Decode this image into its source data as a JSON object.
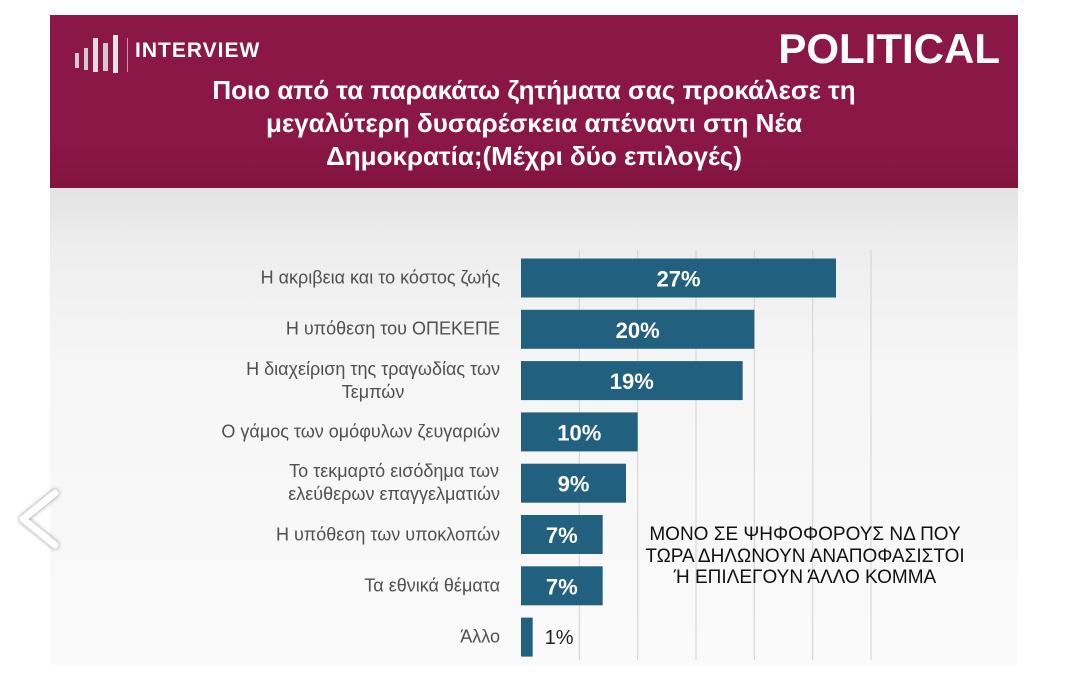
{
  "header": {
    "brand": "INTERVIEW",
    "label": "POLITICAL",
    "header_color": "#8b1747",
    "logo_icon": "logo-bars-icon"
  },
  "chart_data": {
    "type": "bar",
    "orientation": "horizontal",
    "title": "Ποιο από τα παρακάτω ζητήματα σας προκάλεσε τη\nμεγαλύτερη δυσαρέσκεια απέναντι στη Νέα\nΔημοκρατία;(Μέχρι δύο επιλογές)",
    "categories": [
      "Η ακριβεια και το κόστος ζωής",
      "Η υπόθεση του ΟΠΕΚΕΠΕ",
      "Η διαχείριση της τραγωδίας των\nΤεμπών",
      "Ο γάμος των ομόφυλων ζευγαριών",
      "Το τεκμαρτό εισόδημα των\nελεύθερων επαγγελματιών",
      "Η υπόθεση των υποκλοπών",
      "Τα εθνικά θέματα",
      "Άλλο"
    ],
    "values": [
      27,
      20,
      19,
      10,
      9,
      7,
      7,
      1
    ],
    "data_labels": [
      "27%",
      "20%",
      "19%",
      "10%",
      "9%",
      "7%",
      "7%",
      "1%"
    ],
    "unit": "%",
    "xlabel": "",
    "ylabel": "",
    "xlim": [
      0,
      30
    ],
    "grid": true,
    "grid_step": 5,
    "bar_color": "#22607f",
    "annotation": "ΜΟΝΟ ΣΕ ΨΗΦΟΦΟΡΟΥΣ ΝΔ ΠΟΥ\nΤΩΡΑ ΔΗΛΩΝΟΥΝ ΑΝΑΠΟΦΑΣΙΣΤΟΙ\nΉ ΕΠΙΛΕΓΟΥΝ ΆΛΛΟ ΚΟΜΜΑ"
  },
  "navigation": {
    "previous_icon": "chevron-left-icon"
  }
}
